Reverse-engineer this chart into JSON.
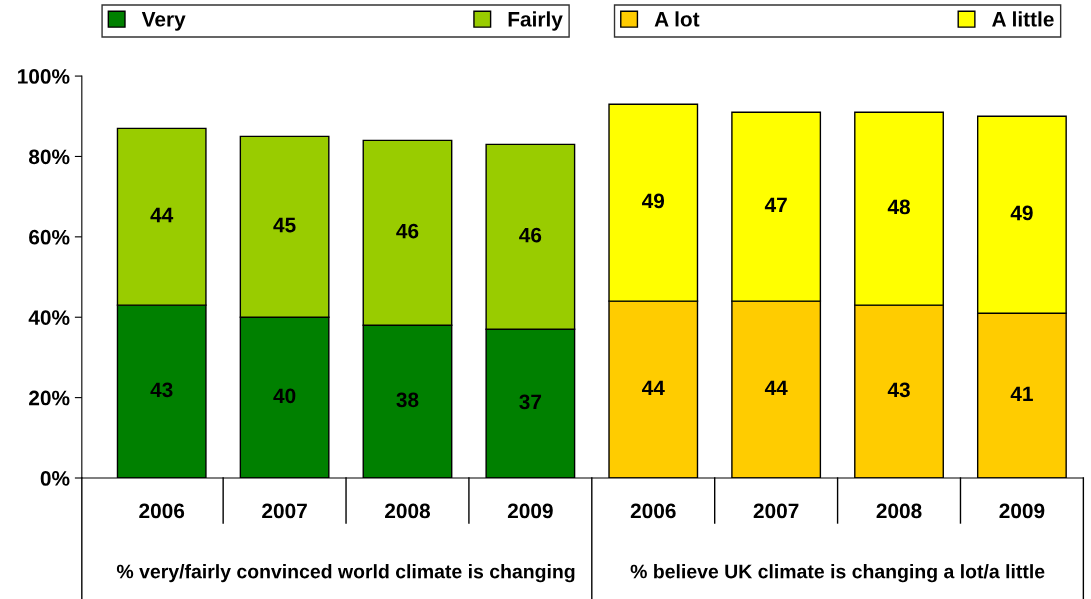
{
  "chart_data": {
    "type": "bar",
    "stacked": true,
    "categories": [
      "2006",
      "2007",
      "2008",
      "2009",
      "2006",
      "2007",
      "2008",
      "2009"
    ],
    "series": [
      {
        "name": "Very",
        "color": "#008000",
        "values": [
          43,
          40,
          38,
          37,
          null,
          null,
          null,
          null
        ]
      },
      {
        "name": "Fairly",
        "color": "#99cc00",
        "values": [
          44,
          45,
          46,
          46,
          null,
          null,
          null,
          null
        ]
      },
      {
        "name": "A lot",
        "color": "#ffcc00",
        "values": [
          null,
          null,
          null,
          null,
          44,
          44,
          43,
          41
        ]
      },
      {
        "name": "A little",
        "color": "#ffff00",
        "values": [
          null,
          null,
          null,
          null,
          49,
          47,
          48,
          49
        ]
      }
    ],
    "ylim": [
      0,
      100
    ],
    "yticks": [
      {
        "value": 0,
        "label": "0%"
      },
      {
        "value": 20,
        "label": "20%"
      },
      {
        "value": 40,
        "label": "40%"
      },
      {
        "value": 60,
        "label": "60%"
      },
      {
        "value": 80,
        "label": "80%"
      },
      {
        "value": 100,
        "label": "100%"
      }
    ],
    "annotations": [
      "% very/fairly convinced world climate is changing",
      "% believe UK climate is changing a lot/a little"
    ],
    "data_labels": true,
    "grid": false,
    "legend": "top"
  }
}
